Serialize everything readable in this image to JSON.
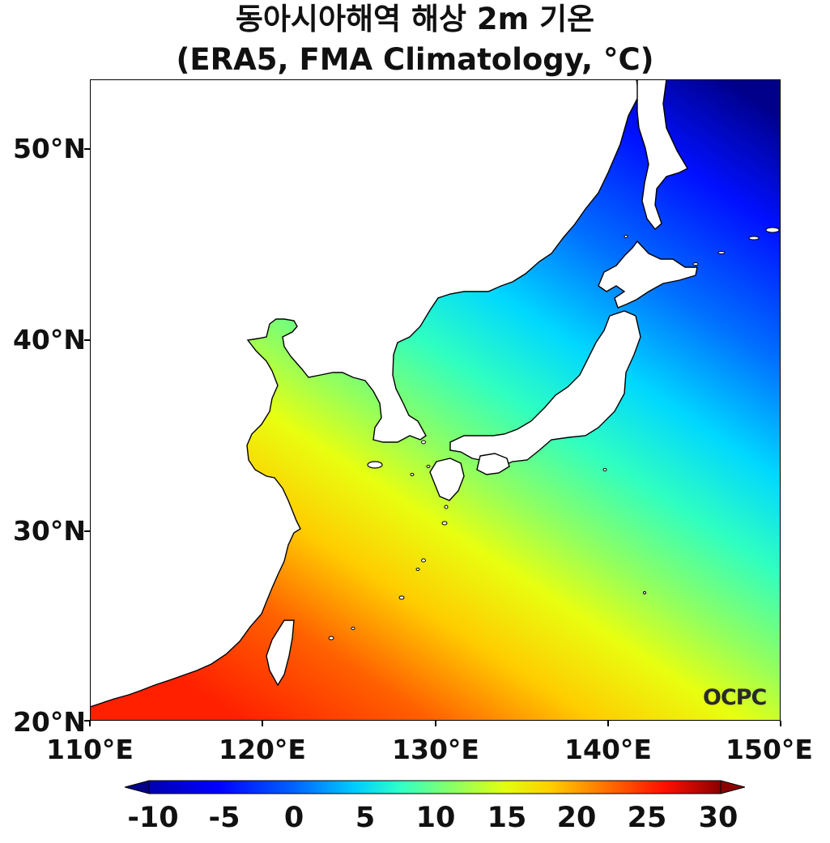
{
  "title": {
    "line1": "동아시아해역 해상 2m 기온",
    "line2": "(ERA5, FMA Climatology, °C)"
  },
  "map": {
    "lon_range": [
      110,
      150
    ],
    "lat_range": [
      20,
      53.5
    ],
    "land_color": "#ffffff",
    "coastline_color": "#000000",
    "x_ticks": [
      "110°E",
      "120°E",
      "130°E",
      "140°E",
      "150°E"
    ],
    "y_ticks": [
      "50°N",
      "40°N",
      "30°N",
      "20°N"
    ],
    "logo": "OCPC"
  },
  "colorbar": {
    "range": [
      -10,
      30
    ],
    "labels": [
      "-10",
      "-5",
      "0",
      "5",
      "10",
      "15",
      "20",
      "25",
      "30"
    ],
    "colormap": "jet",
    "colors": [
      "#00008b",
      "#0000ff",
      "#0080ff",
      "#00e0ff",
      "#40ffb0",
      "#c0ff40",
      "#ffe000",
      "#ff8000",
      "#ff2000",
      "#8b0000"
    ]
  }
}
